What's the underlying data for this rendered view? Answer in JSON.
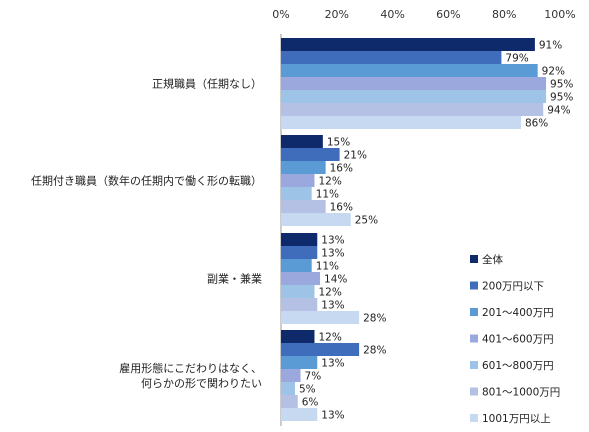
{
  "chart_data": {
    "type": "bar",
    "orientation": "horizontal",
    "title": "",
    "xlabel": "",
    "ylabel": "",
    "xlim": [
      0,
      100
    ],
    "x_ticks": [
      "0%",
      "20%",
      "40%",
      "60%",
      "80%",
      "100%"
    ],
    "grid": false,
    "legend_position": "right",
    "value_suffix": "%",
    "categories": [
      "正規職員（任期なし）",
      "任期付き職員（数年の任期内で働く形の転職）",
      "副業・兼業",
      "雇用形態にこだわりはなく、\n何らかの形で関わりたい"
    ],
    "series": [
      {
        "name": "全体",
        "color": "#0e2a6b",
        "values": [
          91,
          15,
          13,
          12
        ]
      },
      {
        "name": "200万円以下",
        "color": "#3f6dbb",
        "values": [
          79,
          21,
          13,
          28
        ]
      },
      {
        "name": "201～400万円",
        "color": "#5b9bd5",
        "values": [
          92,
          16,
          11,
          13
        ]
      },
      {
        "name": "401～600万円",
        "color": "#9aa8dd",
        "values": [
          95,
          12,
          14,
          7
        ]
      },
      {
        "name": "601～800万円",
        "color": "#9dc3e6",
        "values": [
          95,
          11,
          12,
          5
        ]
      },
      {
        "name": "801～1000万円",
        "color": "#b4c0e4",
        "values": [
          94,
          16,
          13,
          6
        ]
      },
      {
        "name": "1001万円以上",
        "color": "#c6d9f0",
        "values": [
          86,
          25,
          28,
          13
        ]
      }
    ]
  }
}
